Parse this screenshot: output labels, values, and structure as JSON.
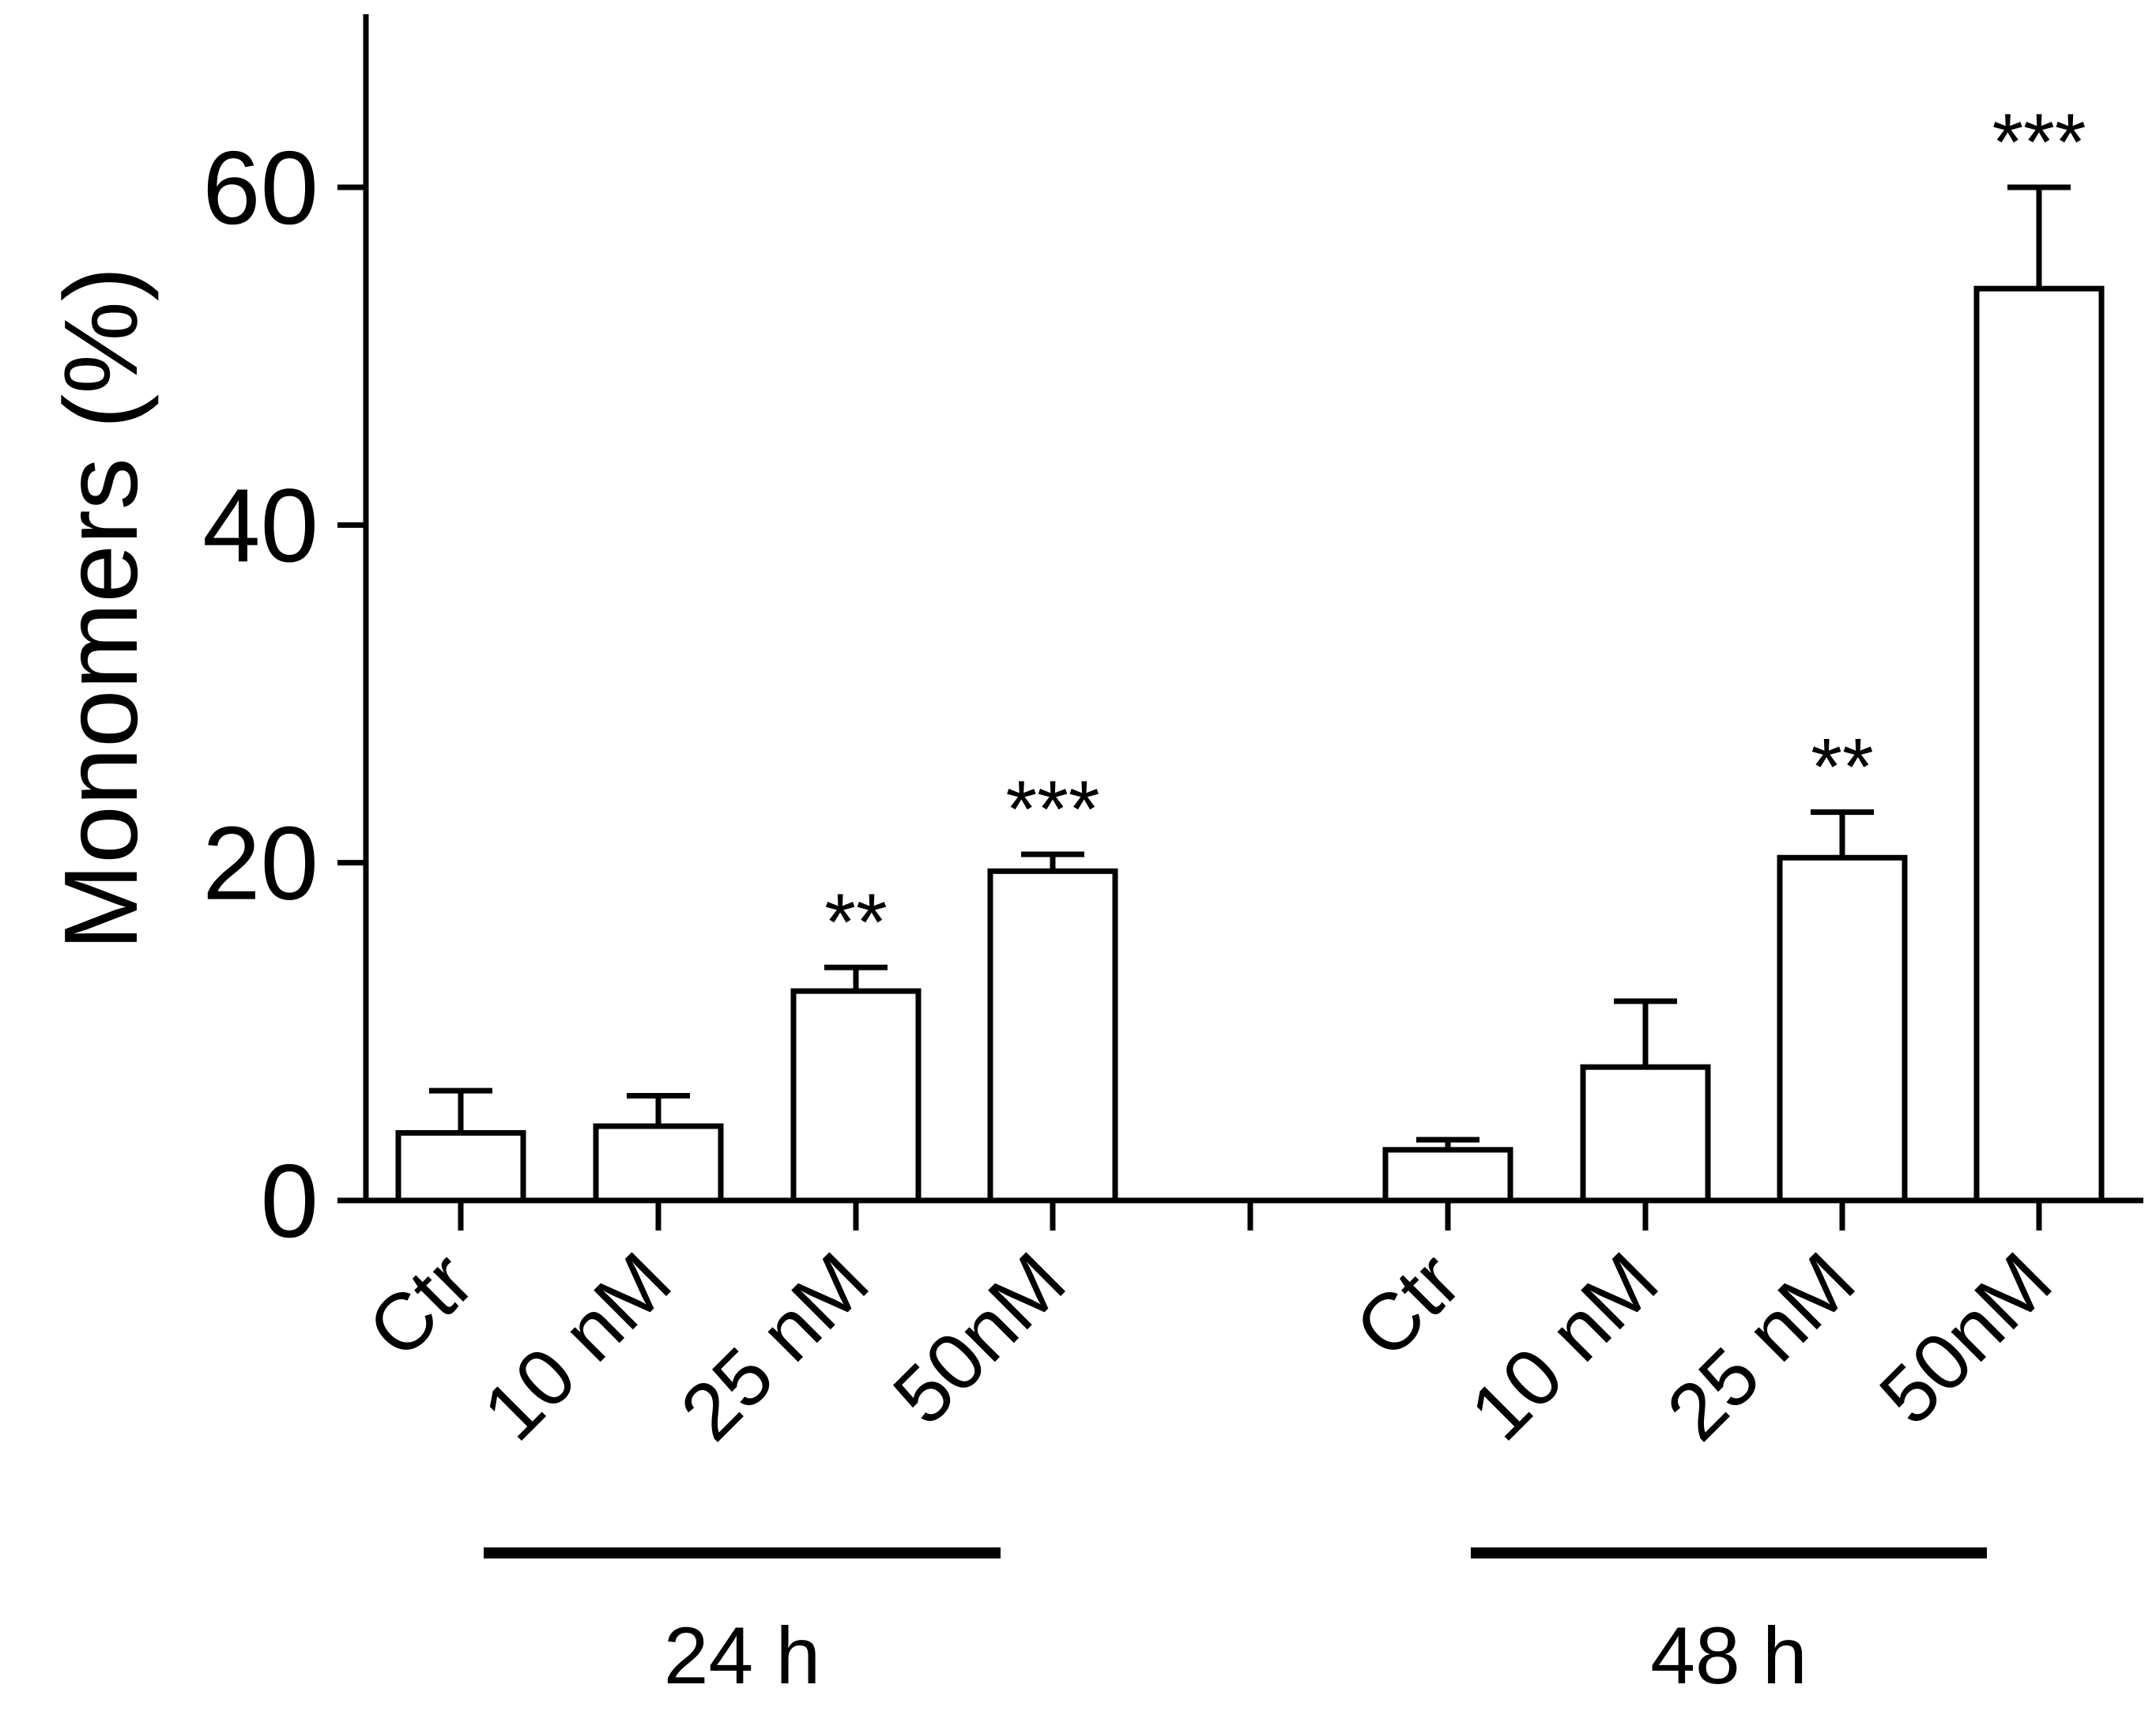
{
  "chart_data": {
    "type": "bar",
    "title": "",
    "xlabel": "",
    "ylabel": "Monomers (%)",
    "ylim": [
      0,
      70
    ],
    "yticks": [
      0,
      20,
      40,
      60
    ],
    "ytick_labels": [
      "0",
      "20",
      "40",
      "60"
    ],
    "grid": false,
    "legend": "none",
    "bar_fill": "#ffffff",
    "bar_stroke": "#000000",
    "categories": [
      "Ctr",
      "10 nM",
      "25 nM",
      "50nM",
      "Ctr",
      "10 nM",
      "25 nM",
      "50nM"
    ],
    "groups": [
      {
        "label": "24 h",
        "indices": [
          1,
          3
        ]
      },
      {
        "label": "48 h",
        "indices": [
          5,
          7
        ]
      }
    ],
    "values": [
      4.0,
      4.4,
      12.4,
      19.5,
      3.0,
      7.9,
      20.3,
      54.0
    ],
    "errors": [
      2.5,
      1.8,
      1.4,
      1.0,
      0.6,
      3.9,
      2.7,
      6.0
    ],
    "significance": [
      "",
      "",
      "**",
      "***",
      "",
      "",
      "**",
      "***"
    ]
  }
}
